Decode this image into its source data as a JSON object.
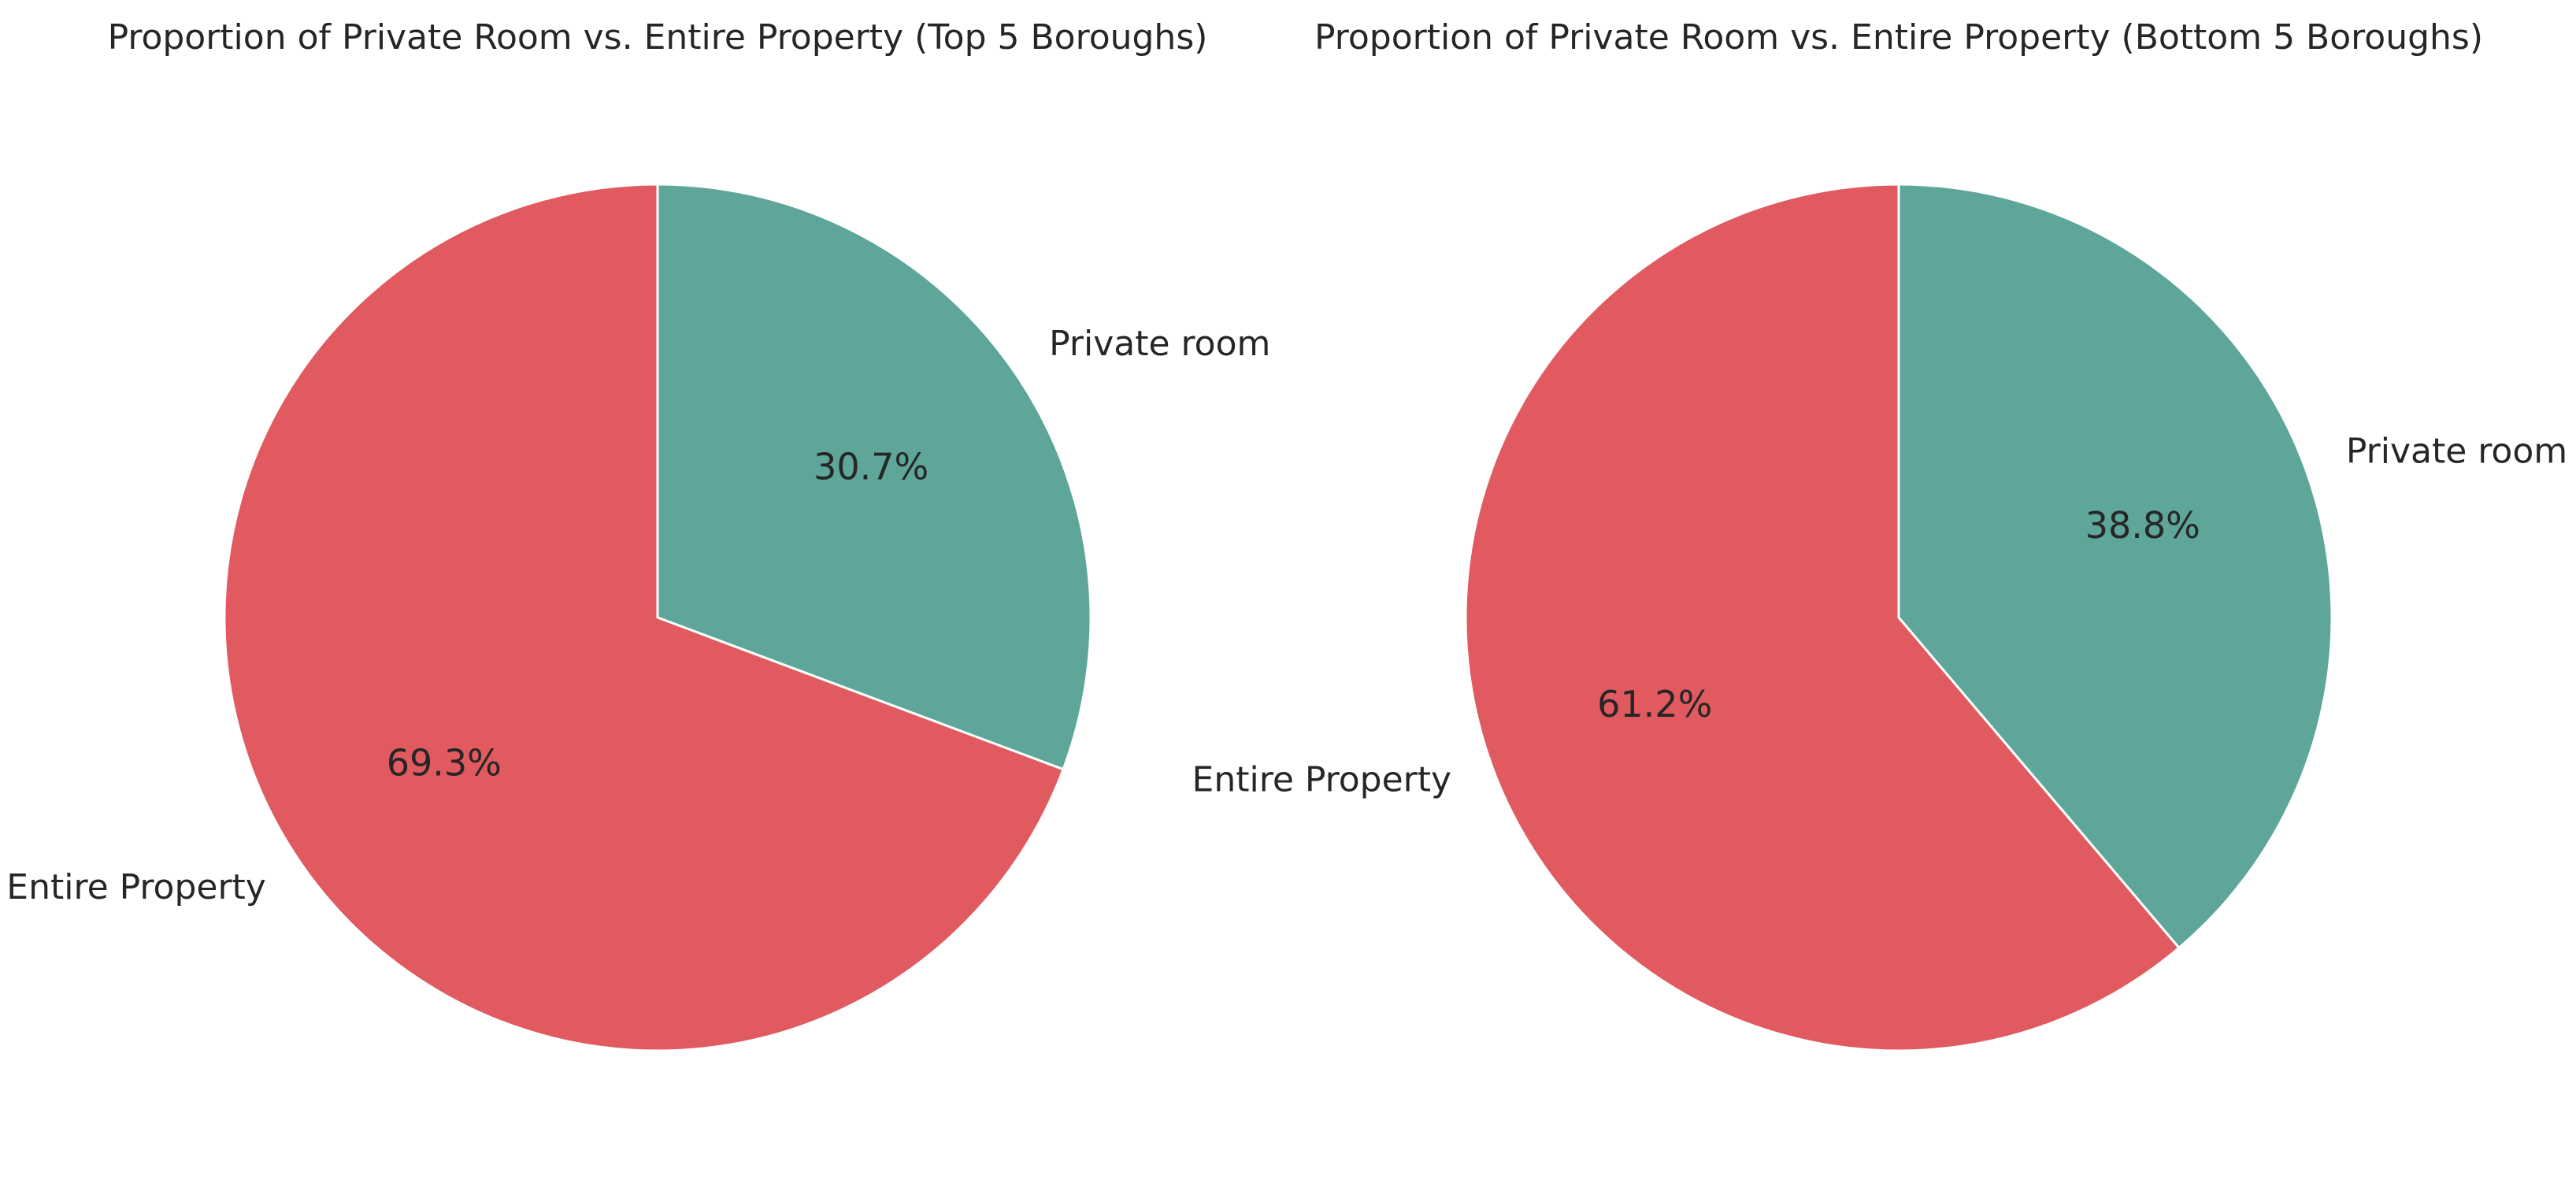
{
  "colors": {
    "entire_property": "#E05A60",
    "private_room": "#5DA699",
    "edge": "#ffffff",
    "text": "#262626"
  },
  "chart_data": [
    {
      "type": "pie",
      "title": "Proportion of Private Room vs. Entire Property (Top 5 Boroughs)",
      "start_angle_deg": 90,
      "direction": "clockwise",
      "slices": [
        {
          "name": "Private room",
          "value": 30.7,
          "pct_label": "30.7%",
          "color": "#5DA699"
        },
        {
          "name": "Entire Property",
          "value": 69.3,
          "pct_label": "69.3%",
          "color": "#E05A60"
        }
      ]
    },
    {
      "type": "pie",
      "title": "Proportion of Private Room vs. Entire Property (Bottom 5 Boroughs)",
      "start_angle_deg": 90,
      "direction": "clockwise",
      "slices": [
        {
          "name": "Private room",
          "value": 38.8,
          "pct_label": "38.8%",
          "color": "#5DA699"
        },
        {
          "name": "Entire Property",
          "value": 61.2,
          "pct_label": "61.2%",
          "color": "#E05A60"
        }
      ]
    }
  ]
}
